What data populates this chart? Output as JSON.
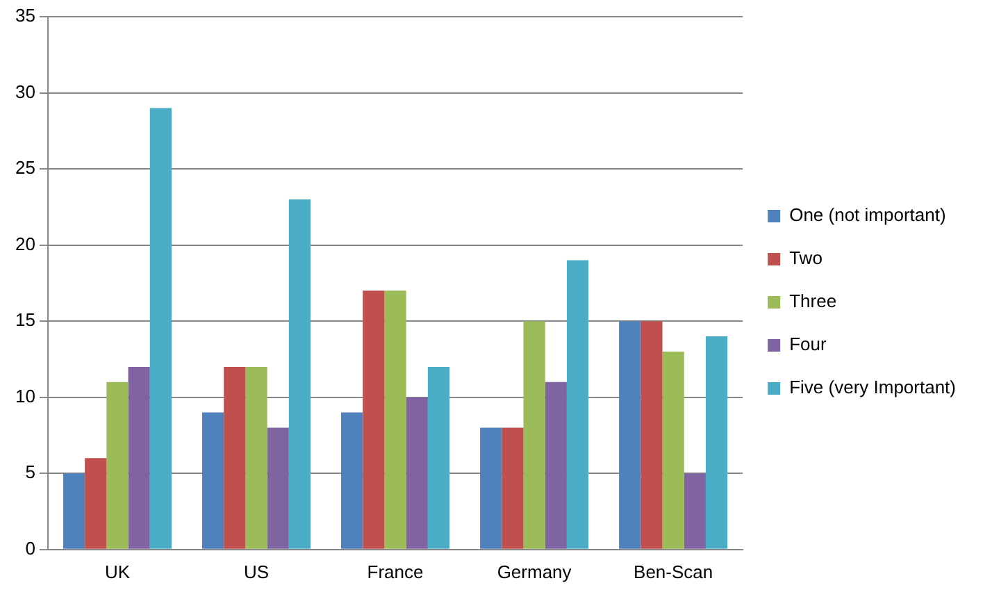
{
  "chart_data": {
    "type": "bar",
    "categories": [
      "UK",
      "US",
      "France",
      "Germany",
      "Ben-Scan"
    ],
    "series": [
      {
        "name": "One (not important)",
        "color": "#4f81bd",
        "values": [
          5,
          9,
          9,
          8,
          15
        ]
      },
      {
        "name": "Two",
        "color": "#c0504d",
        "values": [
          6,
          12,
          17,
          8,
          15
        ]
      },
      {
        "name": "Three",
        "color": "#9bbb59",
        "values": [
          11,
          12,
          17,
          15,
          13
        ]
      },
      {
        "name": "Four",
        "color": "#8064a2",
        "values": [
          12,
          8,
          10,
          11,
          5
        ]
      },
      {
        "name": "Five (very Important)",
        "color": "#4bacc6",
        "values": [
          29,
          23,
          12,
          19,
          14
        ]
      }
    ],
    "ylim": [
      0,
      35
    ],
    "yticks": [
      0,
      5,
      10,
      15,
      20,
      25,
      30,
      35
    ],
    "grid": "y",
    "legend": "right"
  }
}
